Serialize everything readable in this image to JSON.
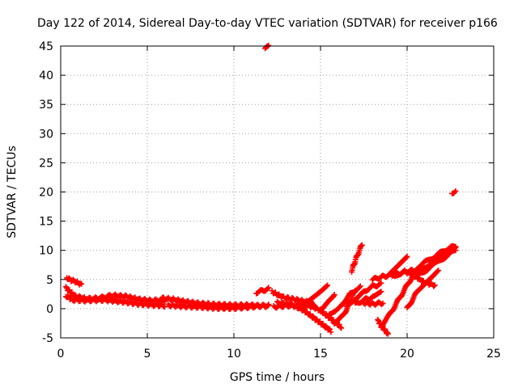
{
  "chart_data": {
    "type": "scatter",
    "title": "Day 122 of 2014, Sidereal Day-to-day VTEC variation (SDTVAR) for receiver p166",
    "xlabel": "GPS time / hours",
    "ylabel": "SDTVAR / TECUs",
    "xlim": [
      0,
      25
    ],
    "ylim": [
      -5,
      45
    ],
    "xticks": [
      "0",
      "5",
      "10",
      "15",
      "20",
      "25"
    ],
    "yticks": [
      "-5",
      "0",
      "5",
      "10",
      "15",
      "20",
      "25",
      "30",
      "35",
      "40",
      "45"
    ],
    "grid": true,
    "marker_color": "#ff0000",
    "series": [
      {
        "name": "SDTVAR",
        "tracks": [
          [
            [
              0.35,
              5.3
            ],
            [
              0.6,
              4.9
            ],
            [
              0.9,
              4.6
            ],
            [
              1.2,
              4.1
            ]
          ],
          [
            [
              0.3,
              3.6
            ],
            [
              0.8,
              2.2
            ],
            [
              1.5,
              1.7
            ],
            [
              2.2,
              1.8
            ],
            [
              3.0,
              2.3
            ],
            [
              3.8,
              2.1
            ],
            [
              4.5,
              1.6
            ],
            [
              5.2,
              1.4
            ],
            [
              6.0,
              1.5
            ]
          ],
          [
            [
              0.3,
              2.2
            ],
            [
              0.7,
              1.5
            ],
            [
              1.4,
              1.4
            ],
            [
              2.5,
              1.5
            ],
            [
              3.5,
              1.2
            ],
            [
              4.5,
              0.8
            ],
            [
              5.5,
              0.6
            ],
            [
              6.0,
              0.5
            ]
          ],
          [
            [
              5.8,
              1.8
            ],
            [
              6.5,
              1.6
            ],
            [
              7.2,
              1.2
            ],
            [
              8.0,
              0.9
            ],
            [
              9.0,
              0.7
            ],
            [
              10.0,
              0.6
            ],
            [
              11.0,
              0.6
            ],
            [
              12.0,
              0.4
            ]
          ],
          [
            [
              6.2,
              0.6
            ],
            [
              7.0,
              0.4
            ],
            [
              8.0,
              0.3
            ],
            [
              9.0,
              0.1
            ],
            [
              10.0,
              0.1
            ],
            [
              11.0,
              0.3
            ],
            [
              12.0,
              0.6
            ]
          ],
          [
            [
              11.3,
              2.8
            ],
            [
              12.0,
              3.4
            ]
          ],
          [
            [
              11.8,
              44.5
            ],
            [
              12.0,
              44.9
            ]
          ],
          [
            [
              12.2,
              2.9
            ],
            [
              12.8,
              2.0
            ],
            [
              13.5,
              1.6
            ],
            [
              14.0,
              1.3
            ],
            [
              14.6,
              0.9
            ]
          ],
          [
            [
              12.3,
              0.3
            ],
            [
              13.0,
              0.5
            ],
            [
              13.8,
              0.6
            ],
            [
              14.5,
              0.4
            ],
            [
              15.0,
              -0.3
            ],
            [
              15.8,
              -2.2
            ],
            [
              16.2,
              -3.2
            ]
          ],
          [
            [
              12.5,
              1.0
            ],
            [
              13.2,
              0.8
            ],
            [
              14.0,
              -0.2
            ],
            [
              14.8,
              -2.0
            ],
            [
              15.6,
              -3.8
            ]
          ],
          [
            [
              14.2,
              1.0
            ],
            [
              14.8,
              2.6
            ],
            [
              15.4,
              4.2
            ]
          ],
          [
            [
              15.0,
              -0.5
            ],
            [
              15.5,
              1.2
            ],
            [
              15.8,
              2.6
            ]
          ],
          [
            [
              15.5,
              -1.0
            ],
            [
              16.2,
              0.6
            ],
            [
              16.7,
              2.6
            ],
            [
              17.3,
              3.8
            ]
          ],
          [
            [
              15.8,
              -2.8
            ],
            [
              16.3,
              -1.2
            ],
            [
              16.7,
              1.0
            ],
            [
              17.0,
              3.3
            ]
          ],
          [
            [
              16.5,
              0.2
            ],
            [
              17.0,
              1.5
            ],
            [
              17.5,
              3.0
            ],
            [
              18.0,
              3.8
            ],
            [
              18.5,
              4.2
            ]
          ],
          [
            [
              16.8,
              6.5
            ],
            [
              17.1,
              9.0
            ],
            [
              17.4,
              11.0
            ]
          ],
          [
            [
              17.0,
              0.8
            ],
            [
              17.6,
              1.6
            ],
            [
              18.1,
              2.0
            ],
            [
              18.5,
              3.0
            ]
          ],
          [
            [
              17.5,
              1.0
            ],
            [
              18.0,
              0.8
            ],
            [
              18.6,
              1.0
            ]
          ],
          [
            [
              18.0,
              5.0
            ],
            [
              18.6,
              5.5
            ],
            [
              19.5,
              6.0
            ],
            [
              20.2,
              6.5
            ],
            [
              21.0,
              6.8
            ]
          ],
          [
            [
              18.5,
              -3.0
            ],
            [
              19.0,
              -1.0
            ],
            [
              19.6,
              2.0
            ],
            [
              20.2,
              5.0
            ],
            [
              20.6,
              7.0
            ]
          ],
          [
            [
              18.3,
              -2.0
            ],
            [
              18.9,
              -4.4
            ]
          ],
          [
            [
              19.0,
              6.0
            ],
            [
              19.6,
              7.8
            ],
            [
              20.0,
              9.0
            ]
          ],
          [
            [
              19.3,
              5.5
            ],
            [
              19.8,
              6.5
            ],
            [
              20.5,
              5.5
            ],
            [
              21.0,
              4.5
            ],
            [
              21.6,
              4.0
            ]
          ],
          [
            [
              20.0,
              0.0
            ],
            [
              20.6,
              3.0
            ],
            [
              21.2,
              5.0
            ],
            [
              21.8,
              6.5
            ]
          ],
          [
            [
              20.2,
              6.0
            ],
            [
              20.8,
              7.5
            ],
            [
              21.6,
              9.0
            ],
            [
              22.3,
              10.2
            ],
            [
              22.8,
              10.8
            ]
          ],
          [
            [
              20.5,
              5.5
            ],
            [
              21.3,
              7.0
            ],
            [
              22.0,
              8.5
            ],
            [
              22.8,
              10.0
            ]
          ],
          [
            [
              20.8,
              6.2
            ],
            [
              21.5,
              8.0
            ],
            [
              22.2,
              9.8
            ],
            [
              22.8,
              10.6
            ]
          ],
          [
            [
              22.6,
              19.9
            ],
            [
              22.8,
              20.1
            ]
          ]
        ]
      }
    ]
  }
}
